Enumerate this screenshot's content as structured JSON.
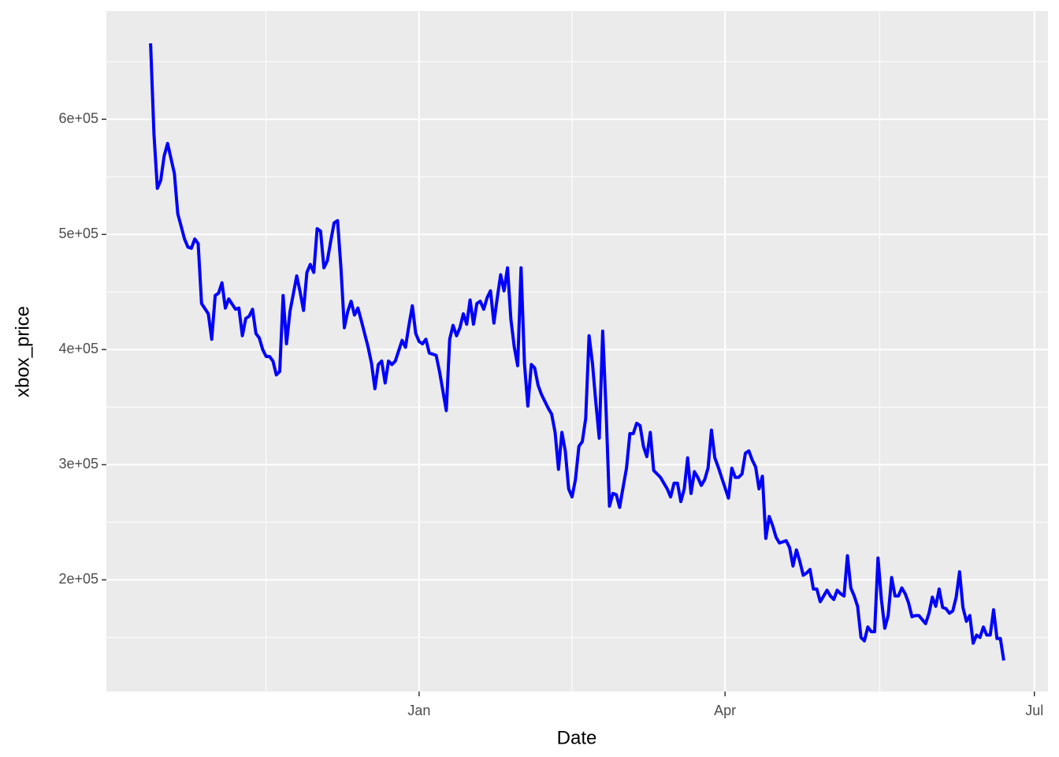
{
  "chart_data": {
    "type": "line",
    "x_label": "Date",
    "y_label": "xbox_price",
    "color": "#0000ff",
    "grid": true,
    "x": [
      -79,
      -78,
      -77,
      -76,
      -75,
      -74,
      -72,
      -71,
      -69,
      -68,
      -67,
      -66,
      -65,
      -64,
      -62,
      -61,
      -60,
      -59,
      -58,
      -57,
      -56,
      -54,
      -53,
      -52,
      -51,
      -50,
      -49,
      -48,
      -47,
      -46,
      -45,
      -44,
      -43,
      -42,
      -41,
      -40,
      -39,
      -38,
      -36,
      -35,
      -34,
      -33,
      -32,
      -31,
      -30,
      -29,
      -28,
      -27,
      -26,
      -25,
      -24,
      -23,
      -22,
      -21,
      -20,
      -19,
      -18,
      -17,
      -15,
      -14,
      -13,
      -12,
      -11,
      -10,
      -9,
      -8,
      -7,
      -5,
      -4,
      -3,
      -2,
      -1,
      0,
      1,
      2,
      3,
      5,
      6,
      7,
      8,
      9,
      10,
      11,
      12,
      13,
      14,
      15,
      16,
      17,
      18,
      19,
      20,
      21,
      22,
      23,
      24,
      25,
      26,
      27,
      28,
      29,
      30,
      31,
      32,
      33,
      34,
      35,
      36,
      38,
      39,
      40,
      41,
      42,
      43,
      44,
      45,
      46,
      47,
      48,
      49,
      50,
      51,
      52,
      53,
      54,
      55,
      56,
      57,
      58,
      59,
      60,
      61,
      62,
      63,
      64,
      65,
      66,
      67,
      68,
      69,
      71,
      72,
      73,
      74,
      75,
      76,
      77,
      78,
      79,
      80,
      81,
      82,
      83,
      84,
      85,
      86,
      87,
      88,
      89,
      91,
      92,
      93,
      94,
      95,
      96,
      97,
      98,
      99,
      100,
      101,
      102,
      103,
      104,
      105,
      106,
      108,
      109,
      110,
      111,
      112,
      113,
      114,
      115,
      116,
      117,
      118,
      119,
      120,
      121,
      122,
      123,
      124,
      125,
      126,
      127,
      128,
      129,
      130,
      131,
      132,
      133,
      134,
      135,
      136,
      137,
      138,
      139,
      140,
      141,
      142,
      143,
      144,
      145,
      146,
      147,
      149,
      150,
      151,
      152,
      153,
      154,
      155,
      156,
      157,
      158,
      159,
      160,
      161,
      162,
      163,
      164,
      165,
      166,
      167,
      168,
      169,
      170,
      171,
      172
    ],
    "values": [
      666000,
      587000,
      540000,
      547000,
      568000,
      579000,
      553000,
      518000,
      496000,
      489000,
      488000,
      496000,
      492000,
      440000,
      431000,
      409000,
      447000,
      449000,
      458000,
      436000,
      444000,
      435000,
      436000,
      412000,
      427000,
      429000,
      435000,
      414000,
      410000,
      400000,
      394000,
      394000,
      390000,
      378000,
      381000,
      447000,
      405000,
      433000,
      464000,
      450000,
      434000,
      467000,
      474000,
      467000,
      505000,
      503000,
      471000,
      477000,
      494000,
      510000,
      512000,
      471000,
      419000,
      433000,
      442000,
      430000,
      436000,
      425000,
      402000,
      388000,
      366000,
      387000,
      390000,
      371000,
      390000,
      387000,
      390000,
      408000,
      402000,
      421000,
      438000,
      414000,
      407000,
      405000,
      409000,
      397000,
      395000,
      381000,
      364000,
      347000,
      409000,
      421000,
      412000,
      419000,
      431000,
      422000,
      443000,
      422000,
      440000,
      442000,
      435000,
      445000,
      451000,
      423000,
      445000,
      465000,
      451000,
      471000,
      426000,
      402000,
      386000,
      471000,
      388000,
      351000,
      387000,
      384000,
      369000,
      361000,
      349000,
      344000,
      328000,
      296000,
      328000,
      312000,
      279000,
      272000,
      287000,
      316000,
      320000,
      340000,
      412000,
      388000,
      354000,
      323000,
      416000,
      347000,
      264000,
      275000,
      274000,
      263000,
      280000,
      297000,
      327000,
      327000,
      336000,
      334000,
      316000,
      307000,
      328000,
      295000,
      289000,
      284000,
      279000,
      272000,
      284000,
      284000,
      268000,
      279000,
      306000,
      275000,
      294000,
      289000,
      282000,
      287000,
      297000,
      330000,
      306000,
      298000,
      289000,
      271000,
      297000,
      289000,
      289000,
      292000,
      310000,
      312000,
      304000,
      298000,
      279000,
      290000,
      236000,
      255000,
      247000,
      237000,
      232000,
      234000,
      228000,
      212000,
      226000,
      216000,
      204000,
      206000,
      209000,
      192000,
      192000,
      181000,
      186000,
      191000,
      186000,
      183000,
      191000,
      188000,
      186000,
      221000,
      193000,
      186000,
      177000,
      150000,
      147000,
      159000,
      155000,
      155000,
      219000,
      183000,
      158000,
      169000,
      202000,
      186000,
      186000,
      193000,
      188000,
      180000,
      168000,
      169000,
      169000,
      162000,
      171000,
      185000,
      177000,
      192000,
      176000,
      175000,
      171000,
      173000,
      185000,
      207000,
      176000,
      164000,
      169000,
      145000,
      152000,
      150000,
      159000,
      152000,
      152000,
      174000,
      149000,
      149000,
      130000
    ],
    "xlim": [
      -92,
      185
    ],
    "xticks": [
      {
        "value": 0,
        "label": "Jan"
      },
      {
        "value": 90,
        "label": "Apr"
      },
      {
        "value": 181,
        "label": "Jul"
      }
    ],
    "ylim": [
      103000,
      694000
    ],
    "yticks": [
      {
        "value": 200000,
        "label": "2e+05"
      },
      {
        "value": 300000,
        "label": "3e+05"
      },
      {
        "value": 400000,
        "label": "4e+05"
      },
      {
        "value": 500000,
        "label": "5e+05"
      },
      {
        "value": 600000,
        "label": "6e+05"
      }
    ]
  }
}
